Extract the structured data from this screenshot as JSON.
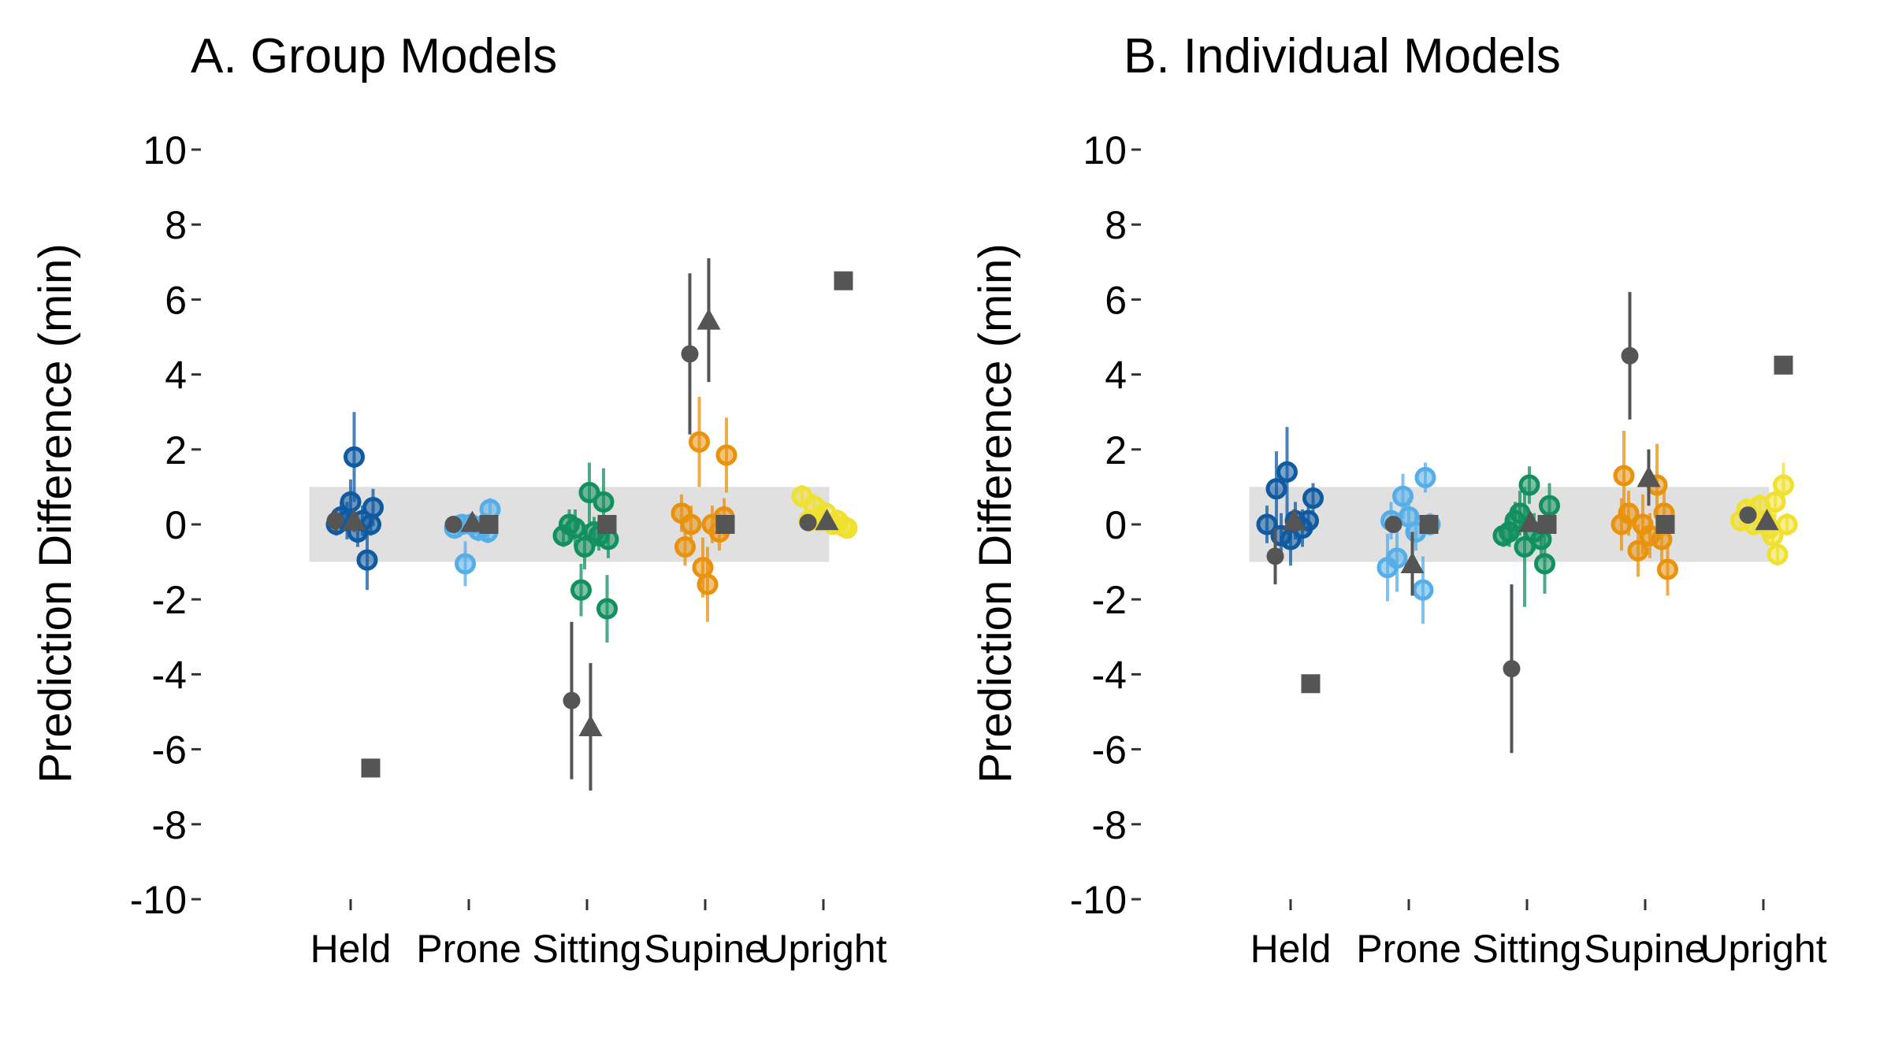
{
  "chart_data": [
    {
      "type": "scatter",
      "title": "A. Group Models",
      "ylabel": "Prediction Difference (min)",
      "xlabel": "",
      "categories": [
        "Held",
        "Prone",
        "Sitting",
        "Supine",
        "Upright"
      ],
      "yticks": [
        "10",
        "8",
        "6",
        "4",
        "2",
        "0",
        "-2",
        "-4",
        "-6",
        "-8",
        "-10"
      ],
      "ylim": [
        -10,
        10
      ],
      "band": [
        -1,
        1
      ],
      "grid": false,
      "colors": {
        "Held": "#0f5aa0",
        "Prone": "#56aee8",
        "Sitting": "#12905f",
        "Supine": "#e8920e",
        "Upright": "#f0e030",
        "summary": "#555555",
        "band": "#e0e0e0"
      },
      "points": [
        {
          "cat": "Held",
          "dx": -0.12,
          "y": 0.0,
          "err": 0.3
        },
        {
          "cat": "Held",
          "dx": -0.08,
          "y": 0.2,
          "err": 0.4
        },
        {
          "cat": "Held",
          "dx": -0.03,
          "y": 0.1,
          "err": 0.5
        },
        {
          "cat": "Held",
          "dx": 0.0,
          "y": 0.6,
          "err": 0.6
        },
        {
          "cat": "Held",
          "dx": 0.03,
          "y": 1.8,
          "err": 1.2
        },
        {
          "cat": "Held",
          "dx": 0.06,
          "y": -0.2,
          "err": 0.4
        },
        {
          "cat": "Held",
          "dx": 0.1,
          "y": 0.1,
          "err": 0.4
        },
        {
          "cat": "Held",
          "dx": 0.14,
          "y": -0.95,
          "err": 0.8
        },
        {
          "cat": "Held",
          "dx": 0.17,
          "y": 0.0,
          "err": 0.3
        },
        {
          "cat": "Held",
          "dx": 0.19,
          "y": 0.45,
          "err": 0.5
        },
        {
          "cat": "Prone",
          "dx": -0.12,
          "y": -0.1,
          "err": 0.2
        },
        {
          "cat": "Prone",
          "dx": -0.06,
          "y": 0.0,
          "err": 0.2
        },
        {
          "cat": "Prone",
          "dx": -0.03,
          "y": -1.05,
          "err": 0.6
        },
        {
          "cat": "Prone",
          "dx": 0.02,
          "y": 0.0,
          "err": 0.3
        },
        {
          "cat": "Prone",
          "dx": 0.08,
          "y": -0.15,
          "err": 0.3
        },
        {
          "cat": "Prone",
          "dx": 0.14,
          "y": 0.0,
          "err": 0.3
        },
        {
          "cat": "Prone",
          "dx": 0.16,
          "y": -0.2,
          "err": 0.3
        },
        {
          "cat": "Prone",
          "dx": 0.18,
          "y": 0.4,
          "err": 0.3
        },
        {
          "cat": "Sitting",
          "dx": -0.2,
          "y": -0.3,
          "err": 0.3
        },
        {
          "cat": "Sitting",
          "dx": -0.15,
          "y": 0.0,
          "err": 0.4
        },
        {
          "cat": "Sitting",
          "dx": -0.1,
          "y": -0.1,
          "err": 0.5
        },
        {
          "cat": "Sitting",
          "dx": -0.05,
          "y": -1.75,
          "err": 0.7
        },
        {
          "cat": "Sitting",
          "dx": -0.02,
          "y": -0.6,
          "err": 0.6
        },
        {
          "cat": "Sitting",
          "dx": 0.02,
          "y": 0.85,
          "err": 0.8
        },
        {
          "cat": "Sitting",
          "dx": 0.06,
          "y": -0.2,
          "err": 0.4
        },
        {
          "cat": "Sitting",
          "dx": 0.1,
          "y": -0.3,
          "err": 0.4
        },
        {
          "cat": "Sitting",
          "dx": 0.14,
          "y": 0.6,
          "err": 0.9
        },
        {
          "cat": "Sitting",
          "dx": 0.17,
          "y": -2.25,
          "err": 0.9
        },
        {
          "cat": "Sitting",
          "dx": 0.18,
          "y": -0.4,
          "err": 0.5
        },
        {
          "cat": "Supine",
          "dx": -0.2,
          "y": 0.3,
          "err": 0.5
        },
        {
          "cat": "Supine",
          "dx": -0.17,
          "y": -0.6,
          "err": 0.5
        },
        {
          "cat": "Supine",
          "dx": -0.12,
          "y": 0.0,
          "err": 0.5
        },
        {
          "cat": "Supine",
          "dx": -0.05,
          "y": 2.2,
          "err": 1.2
        },
        {
          "cat": "Supine",
          "dx": -0.02,
          "y": -1.15,
          "err": 0.8
        },
        {
          "cat": "Supine",
          "dx": 0.02,
          "y": -1.6,
          "err": 1.0
        },
        {
          "cat": "Supine",
          "dx": 0.06,
          "y": 0.0,
          "err": 0.5
        },
        {
          "cat": "Supine",
          "dx": 0.12,
          "y": -0.2,
          "err": 0.5
        },
        {
          "cat": "Supine",
          "dx": 0.16,
          "y": 0.2,
          "err": 0.5
        },
        {
          "cat": "Supine",
          "dx": 0.18,
          "y": 1.85,
          "err": 1.0
        },
        {
          "cat": "Upright",
          "dx": -0.18,
          "y": 0.75,
          "err": 0.3
        },
        {
          "cat": "Upright",
          "dx": -0.12,
          "y": 0.1,
          "err": 0.3
        },
        {
          "cat": "Upright",
          "dx": -0.08,
          "y": 0.5,
          "err": 0.3
        },
        {
          "cat": "Upright",
          "dx": -0.03,
          "y": 0.1,
          "err": 0.2
        },
        {
          "cat": "Upright",
          "dx": 0.02,
          "y": 0.3,
          "err": 0.3
        },
        {
          "cat": "Upright",
          "dx": 0.08,
          "y": 0.0,
          "err": 0.2
        },
        {
          "cat": "Upright",
          "dx": 0.12,
          "y": 0.1,
          "err": 0.3
        },
        {
          "cat": "Upright",
          "dx": 0.17,
          "y": -0.05,
          "err": 0.3
        },
        {
          "cat": "Upright",
          "dx": 0.2,
          "y": -0.1,
          "err": 0.2
        }
      ],
      "summary": [
        {
          "cat": "Held",
          "shape": "circle",
          "y": 0.1,
          "err": 0.3
        },
        {
          "cat": "Held",
          "shape": "triangle",
          "y": 0.1,
          "err": 0.3
        },
        {
          "cat": "Held",
          "shape": "square",
          "y": -6.5,
          "err": 0
        },
        {
          "cat": "Prone",
          "shape": "circle",
          "y": 0.0,
          "err": 0.1
        },
        {
          "cat": "Prone",
          "shape": "triangle",
          "y": 0.05,
          "err": 0.1
        },
        {
          "cat": "Prone",
          "shape": "square",
          "y": 0.0,
          "err": 0
        },
        {
          "cat": "Sitting",
          "shape": "circle",
          "y": -4.7,
          "err": 2.1
        },
        {
          "cat": "Sitting",
          "shape": "triangle",
          "y": -5.4,
          "err": 1.7
        },
        {
          "cat": "Sitting",
          "shape": "square",
          "y": 0.0,
          "err": 0
        },
        {
          "cat": "Supine",
          "shape": "circle",
          "y": 4.55,
          "err": 2.15
        },
        {
          "cat": "Supine",
          "shape": "triangle",
          "y": 5.45,
          "err": 1.65
        },
        {
          "cat": "Supine",
          "shape": "square",
          "y": 0.0,
          "err": 0
        },
        {
          "cat": "Upright",
          "shape": "circle",
          "y": 0.05,
          "err": 0.2
        },
        {
          "cat": "Upright",
          "shape": "triangle",
          "y": 0.1,
          "err": 0.2
        },
        {
          "cat": "Upright",
          "shape": "square",
          "y": 6.5,
          "err": 0
        }
      ]
    },
    {
      "type": "scatter",
      "title": "B. Individual Models",
      "ylabel": "Prediction Difference (min)",
      "xlabel": "",
      "categories": [
        "Held",
        "Prone",
        "Sitting",
        "Supine",
        "Upright"
      ],
      "yticks": [
        "10",
        "8",
        "6",
        "4",
        "2",
        "0",
        "-2",
        "-4",
        "-6",
        "-8",
        "-10"
      ],
      "ylim": [
        -10,
        10
      ],
      "band": [
        -1,
        1
      ],
      "grid": false,
      "colors": {
        "Held": "#0f5aa0",
        "Prone": "#56aee8",
        "Sitting": "#12905f",
        "Supine": "#e8920e",
        "Upright": "#f0e030",
        "summary": "#555555",
        "band": "#e0e0e0"
      },
      "points": [
        {
          "cat": "Held",
          "dx": -0.2,
          "y": 0.0,
          "err": 0.5
        },
        {
          "cat": "Held",
          "dx": -0.12,
          "y": 0.95,
          "err": 1.0
        },
        {
          "cat": "Held",
          "dx": -0.08,
          "y": -0.3,
          "err": 0.6
        },
        {
          "cat": "Held",
          "dx": -0.03,
          "y": 1.4,
          "err": 1.2
        },
        {
          "cat": "Held",
          "dx": 0.0,
          "y": -0.4,
          "err": 0.7
        },
        {
          "cat": "Held",
          "dx": 0.04,
          "y": 0.1,
          "err": 0.5
        },
        {
          "cat": "Held",
          "dx": 0.1,
          "y": -0.1,
          "err": 0.5
        },
        {
          "cat": "Held",
          "dx": 0.15,
          "y": 0.1,
          "err": 0.4
        },
        {
          "cat": "Held",
          "dx": 0.19,
          "y": 0.7,
          "err": 0.4
        },
        {
          "cat": "Prone",
          "dx": -0.18,
          "y": -1.15,
          "err": 0.9
        },
        {
          "cat": "Prone",
          "dx": -0.15,
          "y": 0.1,
          "err": 0.5
        },
        {
          "cat": "Prone",
          "dx": -0.1,
          "y": -0.9,
          "err": 0.9
        },
        {
          "cat": "Prone",
          "dx": -0.05,
          "y": 0.75,
          "err": 0.6
        },
        {
          "cat": "Prone",
          "dx": 0.0,
          "y": 0.2,
          "err": 0.5
        },
        {
          "cat": "Prone",
          "dx": 0.06,
          "y": -0.2,
          "err": 0.5
        },
        {
          "cat": "Prone",
          "dx": 0.12,
          "y": -1.75,
          "err": 0.9
        },
        {
          "cat": "Prone",
          "dx": 0.14,
          "y": 1.25,
          "err": 0.4
        },
        {
          "cat": "Prone",
          "dx": 0.18,
          "y": 0.0,
          "err": 0.3
        },
        {
          "cat": "Sitting",
          "dx": -0.2,
          "y": -0.3,
          "err": 0.3
        },
        {
          "cat": "Sitting",
          "dx": -0.15,
          "y": -0.2,
          "err": 0.4
        },
        {
          "cat": "Sitting",
          "dx": -0.1,
          "y": 0.1,
          "err": 0.5
        },
        {
          "cat": "Sitting",
          "dx": -0.06,
          "y": 0.3,
          "err": 0.6
        },
        {
          "cat": "Sitting",
          "dx": -0.02,
          "y": -0.6,
          "err": 1.6
        },
        {
          "cat": "Sitting",
          "dx": 0.02,
          "y": 1.05,
          "err": 0.5
        },
        {
          "cat": "Sitting",
          "dx": 0.06,
          "y": -0.2,
          "err": 0.5
        },
        {
          "cat": "Sitting",
          "dx": 0.12,
          "y": -0.4,
          "err": 0.5
        },
        {
          "cat": "Sitting",
          "dx": 0.15,
          "y": -1.05,
          "err": 0.8
        },
        {
          "cat": "Sitting",
          "dx": 0.19,
          "y": 0.5,
          "err": 0.6
        },
        {
          "cat": "Supine",
          "dx": -0.2,
          "y": 0.0,
          "err": 0.7
        },
        {
          "cat": "Supine",
          "dx": -0.18,
          "y": 1.3,
          "err": 1.2
        },
        {
          "cat": "Supine",
          "dx": -0.14,
          "y": 0.3,
          "err": 0.6
        },
        {
          "cat": "Supine",
          "dx": -0.06,
          "y": -0.7,
          "err": 0.7
        },
        {
          "cat": "Supine",
          "dx": -0.02,
          "y": 0.0,
          "err": 0.8
        },
        {
          "cat": "Supine",
          "dx": 0.04,
          "y": -0.3,
          "err": 0.6
        },
        {
          "cat": "Supine",
          "dx": 0.1,
          "y": 1.05,
          "err": 1.1
        },
        {
          "cat": "Supine",
          "dx": 0.14,
          "y": -0.4,
          "err": 0.6
        },
        {
          "cat": "Supine",
          "dx": 0.16,
          "y": 0.3,
          "err": 0.6
        },
        {
          "cat": "Supine",
          "dx": 0.19,
          "y": -1.2,
          "err": 0.7
        },
        {
          "cat": "Upright",
          "dx": -0.19,
          "y": 0.1,
          "err": 0.3
        },
        {
          "cat": "Upright",
          "dx": -0.14,
          "y": 0.4,
          "err": 0.3
        },
        {
          "cat": "Upright",
          "dx": -0.08,
          "y": 0.0,
          "err": 0.3
        },
        {
          "cat": "Upright",
          "dx": -0.03,
          "y": 0.5,
          "err": 0.3
        },
        {
          "cat": "Upright",
          "dx": 0.02,
          "y": 0.1,
          "err": 0.3
        },
        {
          "cat": "Upright",
          "dx": 0.05,
          "y": -0.1,
          "err": 0.3
        },
        {
          "cat": "Upright",
          "dx": 0.08,
          "y": -0.3,
          "err": 0.3
        },
        {
          "cat": "Upright",
          "dx": 0.1,
          "y": 0.6,
          "err": 0.4
        },
        {
          "cat": "Upright",
          "dx": 0.12,
          "y": -0.8,
          "err": 0.3
        },
        {
          "cat": "Upright",
          "dx": 0.17,
          "y": 1.05,
          "err": 0.6
        },
        {
          "cat": "Upright",
          "dx": 0.2,
          "y": 0.0,
          "err": 0.3
        }
      ],
      "summary": [
        {
          "cat": "Held",
          "shape": "circle",
          "y": -0.85,
          "err": 0.75
        },
        {
          "cat": "Held",
          "shape": "triangle",
          "y": 0.1,
          "err": 0.3
        },
        {
          "cat": "Held",
          "shape": "square",
          "y": -4.25,
          "err": 0
        },
        {
          "cat": "Prone",
          "shape": "circle",
          "y": 0.0,
          "err": 0.2
        },
        {
          "cat": "Prone",
          "shape": "triangle",
          "y": -1.05,
          "err": 0.85
        },
        {
          "cat": "Prone",
          "shape": "square",
          "y": 0.0,
          "err": 0
        },
        {
          "cat": "Sitting",
          "shape": "circle",
          "y": -3.85,
          "err": 2.25
        },
        {
          "cat": "Sitting",
          "shape": "triangle",
          "y": 0.05,
          "err": 0.2
        },
        {
          "cat": "Sitting",
          "shape": "square",
          "y": 0.0,
          "err": 0
        },
        {
          "cat": "Supine",
          "shape": "circle",
          "y": 4.5,
          "err": 1.7
        },
        {
          "cat": "Supine",
          "shape": "triangle",
          "y": 1.25,
          "err": 0.75
        },
        {
          "cat": "Supine",
          "shape": "square",
          "y": 0.0,
          "err": 0
        },
        {
          "cat": "Upright",
          "shape": "circle",
          "y": 0.25,
          "err": 0.2
        },
        {
          "cat": "Upright",
          "shape": "triangle",
          "y": 0.1,
          "err": 0.2
        },
        {
          "cat": "Upright",
          "shape": "square",
          "y": 4.25,
          "err": 0
        }
      ]
    }
  ]
}
